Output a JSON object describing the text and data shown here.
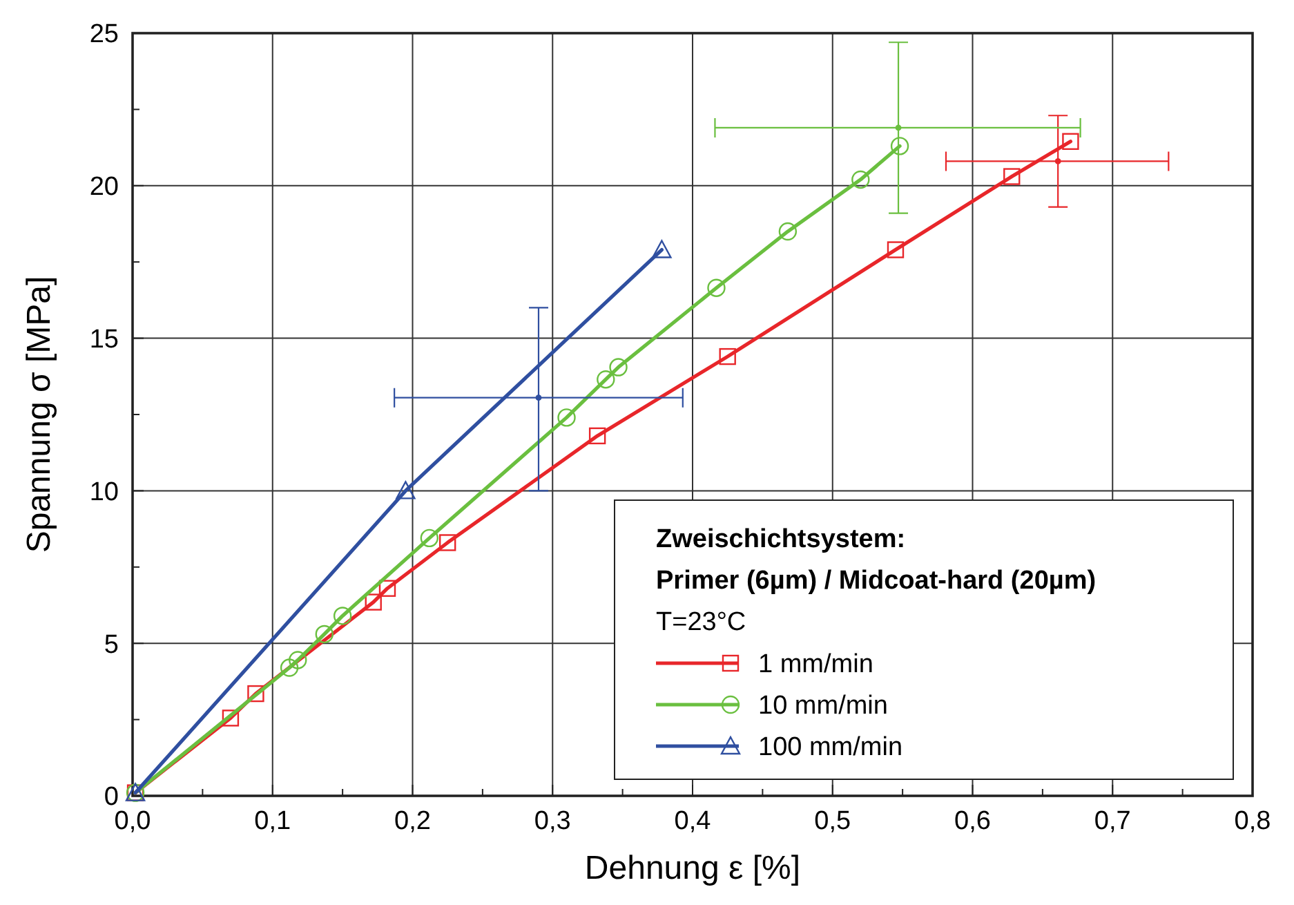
{
  "chart_data": {
    "type": "line",
    "xlabel": "Dehnung ε [%]",
    "ylabel": "Spannung σ [MPa]",
    "xlim": [
      0,
      0.8
    ],
    "ylim": [
      0,
      25
    ],
    "xticks": [
      {
        "value": 0,
        "label": "0,0"
      },
      {
        "value": 0.1,
        "label": "0,1"
      },
      {
        "value": 0.2,
        "label": "0,2"
      },
      {
        "value": 0.3,
        "label": "0,3"
      },
      {
        "value": 0.4,
        "label": "0,4"
      },
      {
        "value": 0.5,
        "label": "0,5"
      },
      {
        "value": 0.6,
        "label": "0,6"
      },
      {
        "value": 0.7,
        "label": "0,7"
      },
      {
        "value": 0.8,
        "label": "0,8"
      }
    ],
    "yticks": [
      0,
      5,
      10,
      15,
      20,
      25
    ],
    "grid": true,
    "legend": "bottom right",
    "line_style": "solid",
    "legend_title": "Zweischichtsystem:\nPrimer (6µm) / Midcoat-hard (20µm)",
    "annotations": [
      "T=23°C"
    ],
    "series": [
      {
        "name": "1 mm/min",
        "color": "#e8262a",
        "marker": "square",
        "x": [
          0.002,
          0.07,
          0.088,
          0.172,
          0.182,
          0.225,
          0.332,
          0.425,
          0.545,
          0.628,
          0.67
        ],
        "values": [
          0.1,
          2.55,
          3.35,
          6.35,
          6.8,
          8.3,
          11.8,
          14.4,
          17.9,
          20.3,
          21.45
        ]
      },
      {
        "name": "10 mm/min",
        "color": "#6abf3f",
        "marker": "circle",
        "x": [
          0.002,
          0.112,
          0.118,
          0.137,
          0.15,
          0.212,
          0.31,
          0.338,
          0.347,
          0.417,
          0.468,
          0.52,
          0.548
        ],
        "values": [
          0.1,
          4.2,
          4.45,
          5.3,
          5.9,
          8.45,
          12.4,
          13.65,
          14.05,
          16.65,
          18.5,
          20.2,
          21.3
        ]
      },
      {
        "name": "100 mm/min",
        "color": "#2f4fa0",
        "marker": "triangle",
        "x": [
          0.002,
          0.195,
          0.378
        ],
        "values": [
          0.1,
          10.0,
          17.9
        ]
      },
      {
        "type": "scatter",
        "color": "#e8262a",
        "x": [
          0.661
        ],
        "values": [
          20.8
        ],
        "errors": [
          [
            19.3,
            22.3
          ]
        ],
        "xerrors": [
          [
            0.581,
            0.74
          ]
        ]
      },
      {
        "type": "scatter",
        "color": "#6abf3f",
        "x": [
          0.547
        ],
        "values": [
          21.9
        ],
        "errors": [
          [
            19.1,
            24.7
          ]
        ],
        "xerrors": [
          [
            0.416,
            0.677
          ]
        ]
      },
      {
        "type": "scatter",
        "color": "#2f4fa0",
        "x": [
          0.29
        ],
        "values": [
          13.05
        ],
        "errors": [
          [
            10.0,
            16.0
          ]
        ],
        "xerrors": [
          [
            0.187,
            0.393
          ]
        ]
      }
    ]
  }
}
